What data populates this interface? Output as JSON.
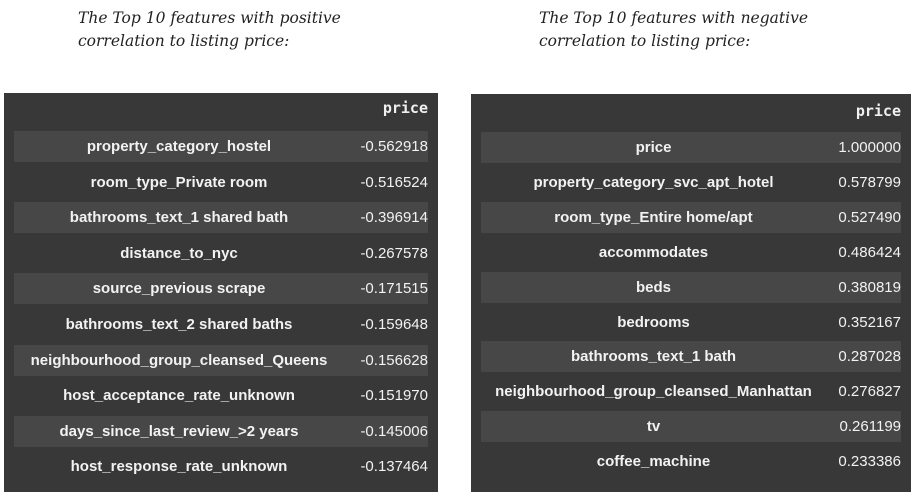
{
  "positive_caption": "The Top 10 features with positive\ncorrelation to listing price:",
  "negative_caption": "The Top 10 features with negative\ncorrelation to listing price:",
  "left_table": {
    "header": "price",
    "rows": [
      {
        "feature": "property_category_hostel",
        "value": "-0.562918"
      },
      {
        "feature": "room_type_Private room",
        "value": "-0.516524"
      },
      {
        "feature": "bathrooms_text_1 shared bath",
        "value": "-0.396914"
      },
      {
        "feature": "distance_to_nyc",
        "value": "-0.267578"
      },
      {
        "feature": "source_previous scrape",
        "value": "-0.171515"
      },
      {
        "feature": "bathrooms_text_2 shared baths",
        "value": "-0.159648"
      },
      {
        "feature": "neighbourhood_group_cleansed_Queens",
        "value": "-0.156628"
      },
      {
        "feature": "host_acceptance_rate_unknown",
        "value": "-0.151970"
      },
      {
        "feature": "days_since_last_review_>2 years",
        "value": "-0.145006"
      },
      {
        "feature": "host_response_rate_unknown",
        "value": "-0.137464"
      }
    ]
  },
  "right_table": {
    "header": "price",
    "rows": [
      {
        "feature": "price",
        "value": "1.000000"
      },
      {
        "feature": "property_category_svc_apt_hotel",
        "value": "0.578799"
      },
      {
        "feature": "room_type_Entire home/apt",
        "value": "0.527490"
      },
      {
        "feature": "accommodates",
        "value": "0.486424"
      },
      {
        "feature": "beds",
        "value": "0.380819"
      },
      {
        "feature": "bedrooms",
        "value": "0.352167"
      },
      {
        "feature": "bathrooms_text_1 bath",
        "value": "0.287028"
      },
      {
        "feature": "neighbourhood_group_cleansed_Manhattan",
        "value": "0.276827"
      },
      {
        "feature": "tv",
        "value": "0.261199"
      },
      {
        "feature": "coffee_machine",
        "value": "0.233386"
      }
    ]
  }
}
